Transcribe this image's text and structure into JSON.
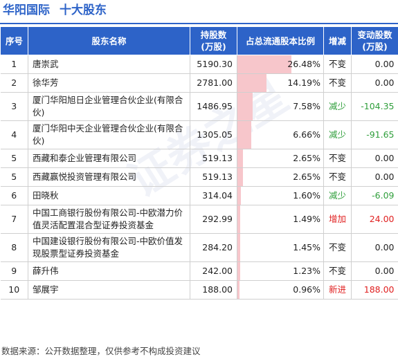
{
  "header": {
    "company": "华阳国际",
    "subtitle": "十大股东"
  },
  "table": {
    "columns": [
      "序号",
      "股东名称",
      "持股数\n(万股)",
      "占总流通股本比例",
      "增减",
      "变动股数\n(万股)"
    ],
    "rows": [
      {
        "idx": "1",
        "name": "唐崇武",
        "holding": "5190.30",
        "pct": "26.48%",
        "pct_value": 26.48,
        "change": "不变",
        "change_type": "same",
        "amount": "0.00",
        "tall": false
      },
      {
        "idx": "2",
        "name": "徐华芳",
        "holding": "2781.00",
        "pct": "14.19%",
        "pct_value": 14.19,
        "change": "不变",
        "change_type": "same",
        "amount": "0.00",
        "tall": false
      },
      {
        "idx": "3",
        "name": "厦门华阳旭日企业管理合伙企业(有限合伙)",
        "holding": "1486.95",
        "pct": "7.58%",
        "pct_value": 7.58,
        "change": "减少",
        "change_type": "down",
        "amount": "-104.35",
        "tall": true
      },
      {
        "idx": "4",
        "name": "厦门华阳中天企业管理合伙企业(有限合伙)",
        "holding": "1305.05",
        "pct": "6.66%",
        "pct_value": 6.66,
        "change": "减少",
        "change_type": "down",
        "amount": "-91.65",
        "tall": true
      },
      {
        "idx": "5",
        "name": "西藏和泰企业管理有限公司",
        "holding": "519.13",
        "pct": "2.65%",
        "pct_value": 2.65,
        "change": "不变",
        "change_type": "same",
        "amount": "0.00",
        "tall": false
      },
      {
        "idx": "5",
        "name": "西藏赢悦投资管理有限公司",
        "holding": "519.13",
        "pct": "2.65%",
        "pct_value": 2.65,
        "change": "不变",
        "change_type": "same",
        "amount": "0.00",
        "tall": false
      },
      {
        "idx": "6",
        "name": "田晓秋",
        "holding": "314.04",
        "pct": "1.60%",
        "pct_value": 1.6,
        "change": "减少",
        "change_type": "down",
        "amount": "-6.09",
        "tall": false
      },
      {
        "idx": "7",
        "name": "中国工商银行股份有限公司-中欧潜力价值灵活配置混合型证券投资基金",
        "holding": "292.99",
        "pct": "1.49%",
        "pct_value": 1.49,
        "change": "增加",
        "change_type": "up",
        "amount": "24.00",
        "tall": true
      },
      {
        "idx": "8",
        "name": "中国建设银行股份有限公司-中欧价值发现股票型证券投资基金",
        "holding": "284.20",
        "pct": "1.45%",
        "pct_value": 1.45,
        "change": "不变",
        "change_type": "same",
        "amount": "0.00",
        "tall": true
      },
      {
        "idx": "9",
        "name": "薛升伟",
        "holding": "242.00",
        "pct": "1.23%",
        "pct_value": 1.23,
        "change": "不变",
        "change_type": "same",
        "amount": "0.00",
        "tall": false
      },
      {
        "idx": "10",
        "name": "邹展宇",
        "holding": "188.00",
        "pct": "0.96%",
        "pct_value": 0.96,
        "change": "新进",
        "change_type": "new",
        "amount": "188.00",
        "tall": false
      }
    ]
  },
  "footer": "数据来源：公开数据整理，仅供参考不构成投资建议",
  "colors": {
    "accent": "#2d63c8",
    "bar": "#f7c6cb",
    "up": "#e02020",
    "down": "#2e9e3a"
  }
}
